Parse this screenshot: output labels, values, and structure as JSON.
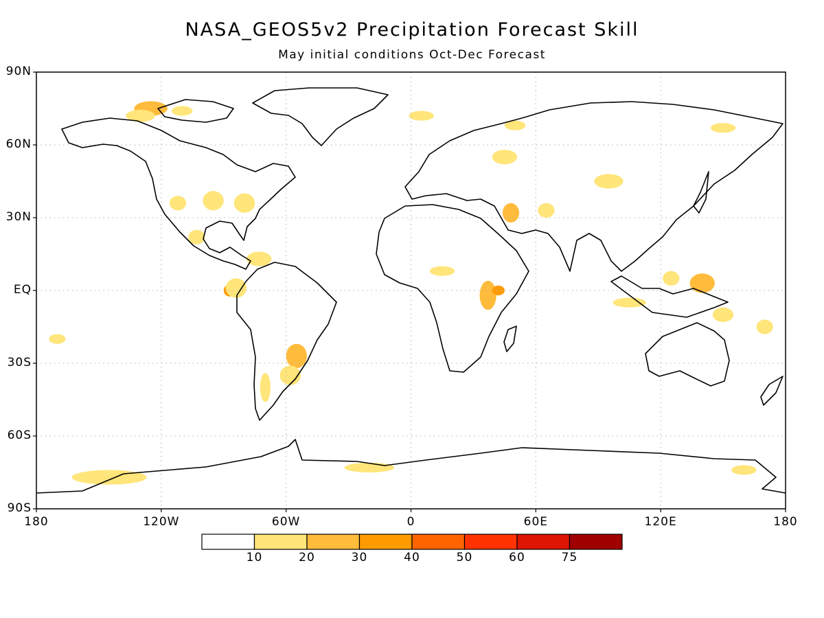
{
  "title": "NASA_GEOS5v2 Precipitation Forecast Skill",
  "subtitle": "May initial conditions  Oct-Dec Forecast",
  "lat_labels": [
    {
      "text": "90N",
      "lat": 90
    },
    {
      "text": "60N",
      "lat": 60
    },
    {
      "text": "30N",
      "lat": 30
    },
    {
      "text": "EQ",
      "lat": 0
    },
    {
      "text": "30S",
      "lat": -30
    },
    {
      "text": "60S",
      "lat": -60
    },
    {
      "text": "90S",
      "lat": -90
    }
  ],
  "lon_labels": [
    {
      "text": "180",
      "lon": -180
    },
    {
      "text": "120W",
      "lon": -120
    },
    {
      "text": "60W",
      "lon": -60
    },
    {
      "text": "0",
      "lon": 0
    },
    {
      "text": "60E",
      "lon": 60
    },
    {
      "text": "120E",
      "lon": 120
    },
    {
      "text": "180",
      "lon": 180
    }
  ],
  "colorbar": {
    "colors": [
      "#ffffff",
      "#ffe57a",
      "#ffbb3c",
      "#ff9b00",
      "#ff6400",
      "#ff3200",
      "#dc1400",
      "#a00000"
    ],
    "labels": [
      "10",
      "20",
      "30",
      "40",
      "50",
      "60",
      "75"
    ]
  },
  "skill_patches": [
    {
      "lon": -125,
      "lat": 75,
      "rx": 8,
      "ry": 3,
      "level": 2
    },
    {
      "lon": -130,
      "lat": 72,
      "rx": 7,
      "ry": 2.5,
      "level": 1
    },
    {
      "lon": -110,
      "lat": 74,
      "rx": 5,
      "ry": 2,
      "level": 1
    },
    {
      "lon": -95,
      "lat": 37,
      "rx": 5,
      "ry": 4,
      "level": 1
    },
    {
      "lon": -112,
      "lat": 36,
      "rx": 4,
      "ry": 3,
      "level": 1
    },
    {
      "lon": -80,
      "lat": 36,
      "rx": 5,
      "ry": 4,
      "level": 1
    },
    {
      "lon": -103,
      "lat": 22,
      "rx": 4,
      "ry": 3,
      "level": 1
    },
    {
      "lon": -73,
      "lat": 13,
      "rx": 6,
      "ry": 3,
      "level": 1
    },
    {
      "lon": -87,
      "lat": 0,
      "rx": 3,
      "ry": 2.5,
      "level": 3
    },
    {
      "lon": -84,
      "lat": 1,
      "rx": 5,
      "ry": 4,
      "level": 1
    },
    {
      "lon": -55,
      "lat": -27,
      "rx": 5,
      "ry": 5,
      "level": 2
    },
    {
      "lon": -58,
      "lat": -35,
      "rx": 5,
      "ry": 4,
      "level": 1
    },
    {
      "lon": -70,
      "lat": -40,
      "rx": 2.5,
      "ry": 6,
      "level": 1
    },
    {
      "lon": -170,
      "lat": -20,
      "rx": 4,
      "ry": 2,
      "level": 1
    },
    {
      "lon": 15,
      "lat": 8,
      "rx": 6,
      "ry": 2,
      "level": 1
    },
    {
      "lon": 37,
      "lat": -2,
      "rx": 4,
      "ry": 6,
      "level": 2
    },
    {
      "lon": 42,
      "lat": 0,
      "rx": 3,
      "ry": 2,
      "level": 3
    },
    {
      "lon": 48,
      "lat": 32,
      "rx": 4,
      "ry": 4,
      "level": 2
    },
    {
      "lon": 65,
      "lat": 33,
      "rx": 4,
      "ry": 3,
      "level": 1
    },
    {
      "lon": 45,
      "lat": 55,
      "rx": 6,
      "ry": 3,
      "level": 1
    },
    {
      "lon": 95,
      "lat": 45,
      "rx": 7,
      "ry": 3,
      "level": 1
    },
    {
      "lon": 140,
      "lat": 3,
      "rx": 6,
      "ry": 4,
      "level": 2
    },
    {
      "lon": 125,
      "lat": 5,
      "rx": 4,
      "ry": 3,
      "level": 1
    },
    {
      "lon": 105,
      "lat": -5,
      "rx": 8,
      "ry": 2,
      "level": 1
    },
    {
      "lon": 150,
      "lat": -10,
      "rx": 5,
      "ry": 3,
      "level": 1
    },
    {
      "lon": 170,
      "lat": -15,
      "rx": 4,
      "ry": 3,
      "level": 1
    },
    {
      "lon": 5,
      "lat": 72,
      "rx": 6,
      "ry": 2,
      "level": 1
    },
    {
      "lon": 50,
      "lat": 68,
      "rx": 5,
      "ry": 2,
      "level": 1
    },
    {
      "lon": 150,
      "lat": 67,
      "rx": 6,
      "ry": 2,
      "level": 1
    },
    {
      "lon": -145,
      "lat": -77,
      "rx": 18,
      "ry": 3,
      "level": 1
    },
    {
      "lon": -20,
      "lat": -73,
      "rx": 12,
      "ry": 2,
      "level": 1
    },
    {
      "lon": 160,
      "lat": -74,
      "rx": 6,
      "ry": 2,
      "level": 1
    }
  ]
}
